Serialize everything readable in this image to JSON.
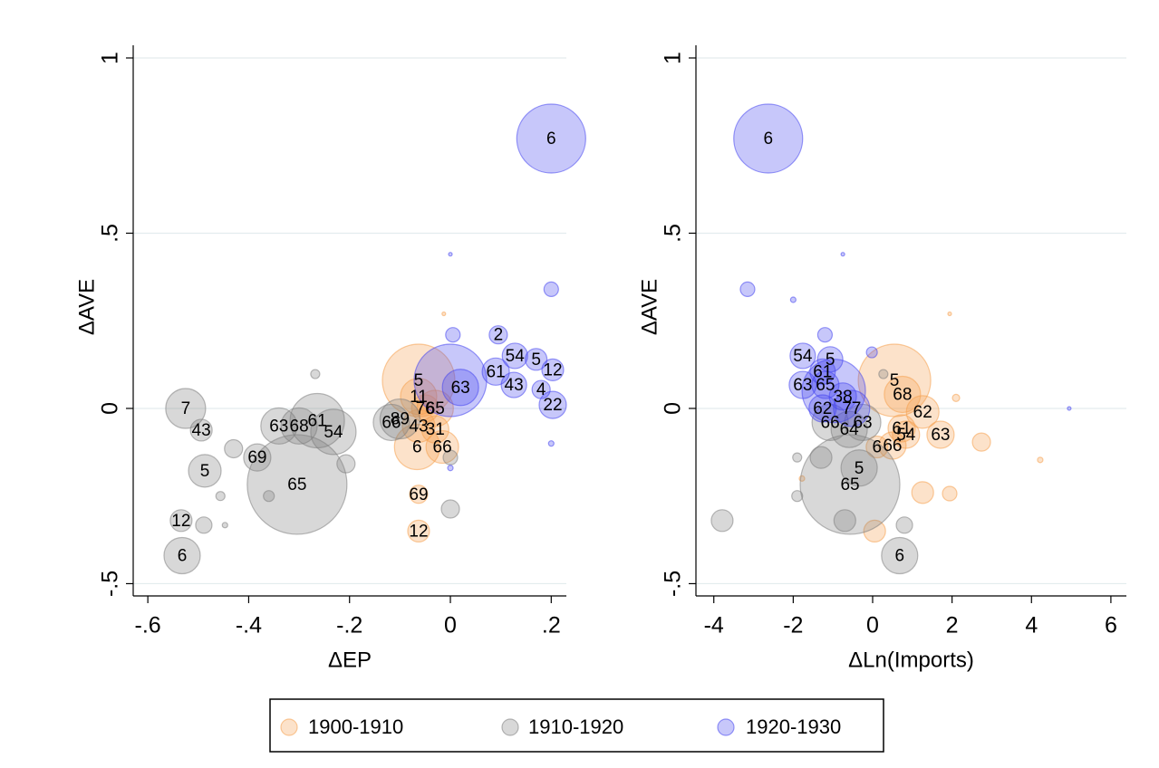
{
  "chart_data": [
    {
      "type": "scatter",
      "xlabel": "ΔEP",
      "ylabel": "ΔAVE",
      "xlim": [
        -0.629,
        0.23
      ],
      "ylim": [
        -0.535,
        1.062
      ],
      "xticks": [
        {
          "value": -0.6,
          "label": "-.6"
        },
        {
          "value": -0.4,
          "label": "-.4"
        },
        {
          "value": -0.2,
          "label": "-.2"
        },
        0,
        {
          "value": 0.2,
          "label": ".2"
        }
      ],
      "yticks": [
        {
          "value": -0.5,
          "label": "-.5"
        },
        0,
        {
          "value": 0.5,
          "label": ".5"
        },
        1
      ],
      "grid": true,
      "series": [
        {
          "name": "1900-1910",
          "color": "#f5a04e",
          "x": [
            -0.063,
            -0.063,
            -0.05,
            -0.063,
            -0.066,
            -0.016,
            -0.063,
            -0.063,
            -0.03,
            -0.03,
            -0.013
          ],
          "values": [
            0.08,
            0.034,
            0,
            -0.05,
            -0.11,
            -0.11,
            -0.245,
            -0.35,
            -0.06,
            0,
            0.27
          ],
          "sizes": [
            40,
            20,
            15,
            18,
            25,
            18,
            10,
            12,
            15,
            20,
            2
          ],
          "labels": [
            "5",
            "11",
            "76",
            "43",
            "6",
            "66",
            "69",
            "12",
            "31",
            "65",
            null
          ]
        },
        {
          "name": "1910-1920",
          "color": "#7f7f7f",
          "x": [
            -0.525,
            -0.494,
            -0.487,
            -0.383,
            -0.304,
            -0.34,
            -0.3,
            -0.264,
            -0.232,
            -0.534,
            -0.532,
            -0.1,
            -0.117,
            -0.268,
            -0.43,
            -0.207,
            -0.456,
            -0.36,
            -0.489,
            -0.447,
            0,
            0
          ],
          "values": [
            0,
            -0.062,
            -0.178,
            -0.14,
            -0.217,
            -0.05,
            -0.05,
            -0.035,
            -0.067,
            -0.32,
            -0.42,
            -0.03,
            -0.04,
            0.098,
            -0.115,
            -0.158,
            -0.25,
            -0.25,
            -0.333,
            -0.333,
            -0.287,
            -0.14
          ],
          "sizes": [
            22,
            12,
            18,
            15,
            55,
            20,
            20,
            30,
            25,
            12,
            20,
            22,
            20,
            5,
            10,
            10,
            5,
            6,
            9,
            3,
            10,
            8
          ],
          "labels": [
            "7",
            "43",
            "5",
            "69",
            "65",
            "63",
            "68",
            "61",
            "54",
            "12",
            "6",
            "89",
            "66",
            null,
            null,
            null,
            null,
            null,
            null,
            null,
            null,
            null
          ]
        },
        {
          "name": "1920-1930",
          "color": "#4646f0",
          "x": [
            0.2,
            0.095,
            0.128,
            0.17,
            0.203,
            0.09,
            0.126,
            0.18,
            0.203,
            0.02,
            0,
            0.2,
            0,
            0.005,
            0.2,
            0
          ],
          "values": [
            0.77,
            0.21,
            0.15,
            0.14,
            0.11,
            0.105,
            0.067,
            0.054,
            0.01,
            0.06,
            0.08,
            0.34,
            0.44,
            0.21,
            -0.1,
            -0.17
          ],
          "sizes": [
            38,
            10,
            14,
            12,
            12,
            15,
            14,
            10,
            15,
            20,
            40,
            8,
            2,
            8,
            3,
            3
          ],
          "labels": [
            "6",
            "2",
            "54",
            "5",
            "12",
            "61",
            "43",
            "4",
            "22",
            "63",
            null,
            null,
            null,
            null,
            null,
            null
          ]
        }
      ]
    },
    {
      "type": "scatter",
      "xlabel": "ΔLn(Imports)",
      "ylabel": "ΔAVE",
      "xlim": [
        -4.45,
        6.39
      ],
      "ylim": [
        -0.535,
        1.062
      ],
      "xticks": [
        -4,
        -2,
        0,
        2,
        4,
        6
      ],
      "yticks": [
        {
          "value": -0.5,
          "label": "-.5"
        },
        0,
        {
          "value": 0.5,
          "label": ".5"
        },
        1
      ],
      "grid": true,
      "series": [
        {
          "color": "#f5a04e",
          "x": [
            0.55,
            0.75,
            1.26,
            0.73,
            1.71,
            0.84,
            0.5,
            0.11,
            2.74,
            1.94,
            1.26,
            2.1,
            4.22,
            0.05,
            1.94,
            -1.78
          ],
          "values": [
            0.08,
            0.04,
            -0.01,
            -0.057,
            -0.075,
            -0.075,
            -0.106,
            -0.11,
            -0.096,
            -0.243,
            -0.24,
            0.03,
            -0.147,
            -0.35,
            0.27,
            -0.2
          ],
          "sizes": [
            40,
            20,
            18,
            15,
            15,
            15,
            15,
            12,
            10,
            8,
            12,
            4,
            3,
            12,
            2,
            3
          ],
          "labels": [
            "5",
            "68",
            "62",
            "61",
            "63",
            "54",
            "66",
            "6",
            null,
            null,
            null,
            null,
            null,
            null,
            null,
            null
          ]
        },
        {
          "color": "#7f7f7f",
          "x": [
            -0.57,
            -0.34,
            -0.59,
            -1.07,
            -0.25,
            0.68,
            -3.79,
            -1.3,
            -0.7,
            0.8,
            -1.9,
            -1.9,
            0.27
          ],
          "values": [
            -0.217,
            -0.17,
            -0.06,
            -0.04,
            -0.04,
            -0.42,
            -0.32,
            -0.14,
            -0.32,
            -0.333,
            -0.14,
            -0.25,
            0.098
          ],
          "sizes": [
            55,
            20,
            20,
            20,
            20,
            20,
            12,
            12,
            12,
            9,
            5,
            6,
            5
          ],
          "labels": [
            "65",
            "5",
            "64",
            "66",
            "63",
            "6",
            null,
            null,
            null,
            null,
            null,
            null,
            null
          ]
        },
        {
          "color": "#4646f0",
          "x": [
            -2.63,
            -1.76,
            -1.07,
            -1.26,
            -1.76,
            -1.19,
            -0.75,
            -1.26,
            -0.53,
            -0.98,
            -3.15,
            -0.75,
            -2.0,
            -0.02,
            4.95,
            -1.2
          ],
          "values": [
            0.77,
            0.15,
            0.14,
            0.105,
            0.067,
            0.067,
            0.034,
            0,
            0,
            0.05,
            0.34,
            0.44,
            0.31,
            0.16,
            0,
            0.21
          ],
          "sizes": [
            38,
            14,
            14,
            14,
            15,
            15,
            15,
            15,
            20,
            35,
            8,
            2,
            3,
            6,
            2,
            8
          ],
          "labels": [
            "6",
            "54",
            "5",
            "61",
            "63",
            "65",
            "38",
            "62",
            "77",
            null,
            null,
            null,
            null,
            null,
            null,
            null
          ]
        }
      ]
    }
  ]
}
